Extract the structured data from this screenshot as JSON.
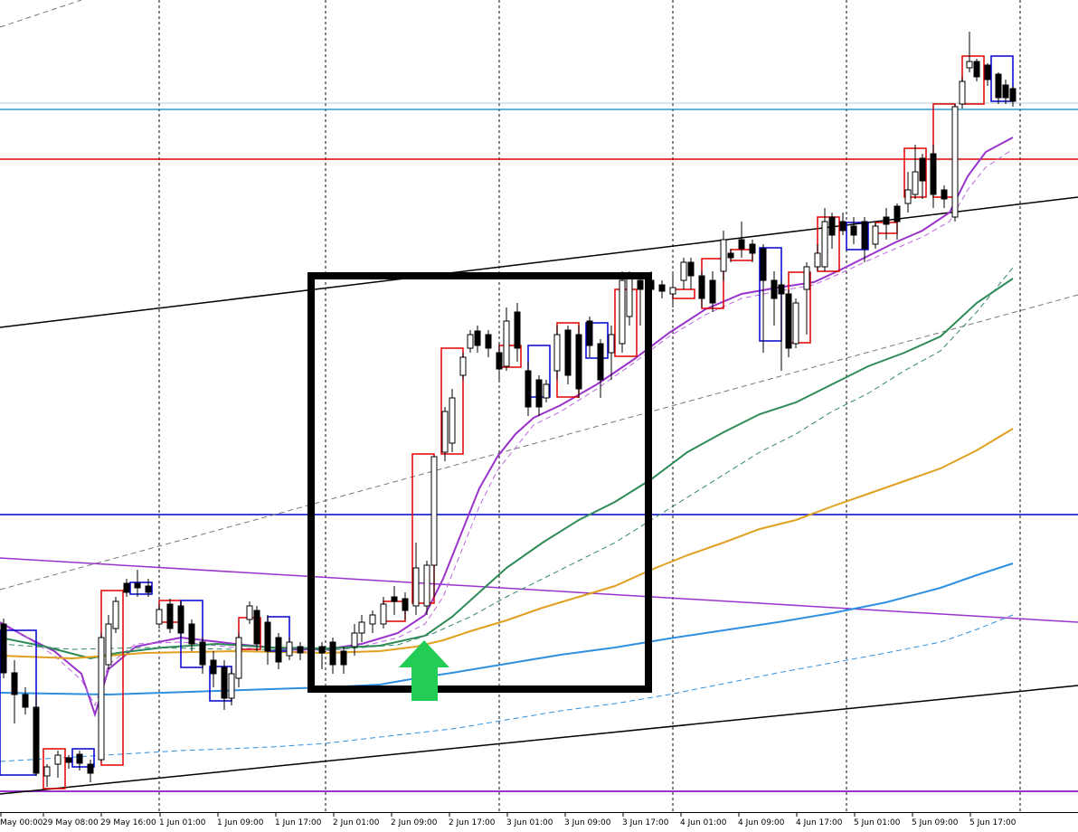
{
  "chart_data": {
    "type": "candlestick",
    "title": "",
    "xlabel": "",
    "ylabel": "",
    "grid": false,
    "x_ticks": [
      "May 00:00",
      "29 May 08:00",
      "29 May 16:00",
      "1 Jun 01:00",
      "1 Jun 09:00",
      "1 Jun 17:00",
      "2 Jun 01:00",
      "2 Jun 09:00",
      "2 Jun 17:00",
      "3 Jun 01:00",
      "3 Jun 09:00",
      "3 Jun 17:00",
      "4 Jun 01:00",
      "4 Jun 09:00",
      "4 Jun 17:00",
      "5 Jun 01:00",
      "5 Jun 09:00",
      "5 Jun 17:00"
    ],
    "colors": {
      "bull_box": "#e00000",
      "bear_box": "#0000cc",
      "candle": "#000000",
      "ma_fast": "#9933cc",
      "ma_green": "#2e8b57",
      "ma_gold": "#e0a020",
      "ma_blue": "#2f8fe0",
      "level_red": "#e00000",
      "level_blue": "#0000cc",
      "level_lightblue": "#3399cc",
      "level_purple": "#9933cc",
      "highlight_box": "#000000",
      "arrow": "#22cc55"
    },
    "annotations": [
      {
        "type": "highlight-box",
        "from": "2 Jun 01:00",
        "to": "3 Jun 17:00"
      },
      {
        "type": "up-arrow",
        "at": "2 Jun 09:00"
      }
    ]
  }
}
